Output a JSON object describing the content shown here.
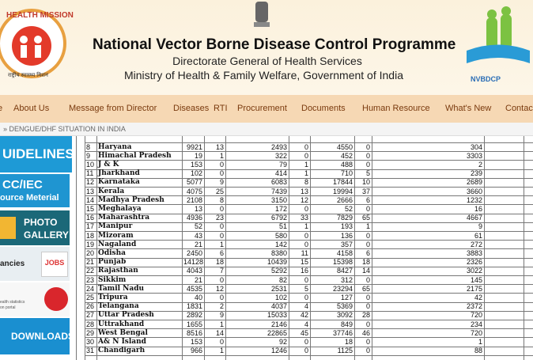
{
  "header": {
    "logo_left_text": "HEALTH MISSION",
    "logo_left_hindi": "राष्ट्रीय स्वास्थ्य मिशन",
    "title": "National Vector Borne Disease Control Programme",
    "subtitle1": "Directorate General of Health Services",
    "subtitle2": "Ministry of Health & Family Welfare, Government of India",
    "logo_right_text": "NVBDCP"
  },
  "nav": [
    "e",
    "About Us",
    "Message from Director",
    "Diseases",
    "RTI",
    "Procurement",
    "Documents",
    "Human Resource",
    "What's New",
    "Contact"
  ],
  "breadcrumb": "» DENGUE/DHF SITUATION IN INDIA",
  "sidebar": {
    "guidelines": "UIDELINES",
    "bcc1": "CC/IEC",
    "bcc2": "ource Meterial",
    "photo1": "PHOTO",
    "photo2": "GALLERY",
    "vacancies": "ancies",
    "jobs": "JOBS",
    "health1": "ealth statistics",
    "health2": "on portal",
    "downloads": "DOWNLOADS"
  },
  "table": {
    "rows": [
      [
        "8",
        "Haryana",
        9921,
        13,
        2493,
        0,
        4550,
        0,
        304
      ],
      [
        "9",
        "Himachal Pradesh",
        19,
        1,
        322,
        0,
        452,
        0,
        3303
      ],
      [
        "10",
        "J & K",
        153,
        0,
        79,
        1,
        488,
        0,
        2
      ],
      [
        "11",
        "Jharkhand",
        102,
        0,
        414,
        1,
        710,
        5,
        239
      ],
      [
        "12",
        "Karnataka",
        5077,
        9,
        6083,
        8,
        17844,
        10,
        2689
      ],
      [
        "13",
        "Kerala",
        4075,
        25,
        7439,
        13,
        19994,
        37,
        3660
      ],
      [
        "14",
        "Madhya Pradesh",
        2108,
        8,
        3150,
        12,
        2666,
        6,
        1232
      ],
      [
        "15",
        "Meghalaya",
        13,
        0,
        172,
        0,
        52,
        0,
        16
      ],
      [
        "16",
        "Maharashtra",
        4936,
        23,
        6792,
        33,
        7829,
        65,
        4667
      ],
      [
        "17",
        "Manipur",
        52,
        0,
        51,
        1,
        193,
        1,
        9
      ],
      [
        "18",
        "Mizoram",
        43,
        0,
        580,
        0,
        136,
        0,
        61
      ],
      [
        "19",
        "Nagaland",
        21,
        1,
        142,
        0,
        357,
        0,
        272
      ],
      [
        "20",
        "Odisha",
        2450,
        6,
        8380,
        11,
        4158,
        6,
        3883
      ],
      [
        "21",
        "Punjab",
        14128,
        18,
        10439,
        15,
        15398,
        18,
        2326
      ],
      [
        "22",
        "Rajasthan",
        4043,
        7,
        5292,
        16,
        8427,
        14,
        3022
      ],
      [
        "23",
        "Sikkim",
        21,
        0,
        82,
        0,
        312,
        0,
        145
      ],
      [
        "24",
        "Tamil Nadu",
        4535,
        12,
        2531,
        5,
        23294,
        65,
        2175
      ],
      [
        "25",
        "Tripura",
        40,
        0,
        102,
        0,
        127,
        0,
        42
      ],
      [
        "26",
        "Telangana",
        1831,
        2,
        4037,
        4,
        5369,
        0,
        2372
      ],
      [
        "27",
        "Uttar Pradesh",
        2892,
        9,
        15033,
        42,
        3092,
        28,
        720
      ],
      [
        "28",
        "Uttrakhand",
        1655,
        1,
        2146,
        4,
        849,
        0,
        234
      ],
      [
        "29",
        "West Bengal",
        8516,
        14,
        22865,
        45,
        37746,
        46,
        720
      ],
      [
        "30",
        "A& N Island",
        153,
        0,
        92,
        0,
        18,
        0,
        1
      ],
      [
        "31",
        "Chandigarh",
        966,
        1,
        1246,
        0,
        1125,
        0,
        88
      ]
    ]
  }
}
